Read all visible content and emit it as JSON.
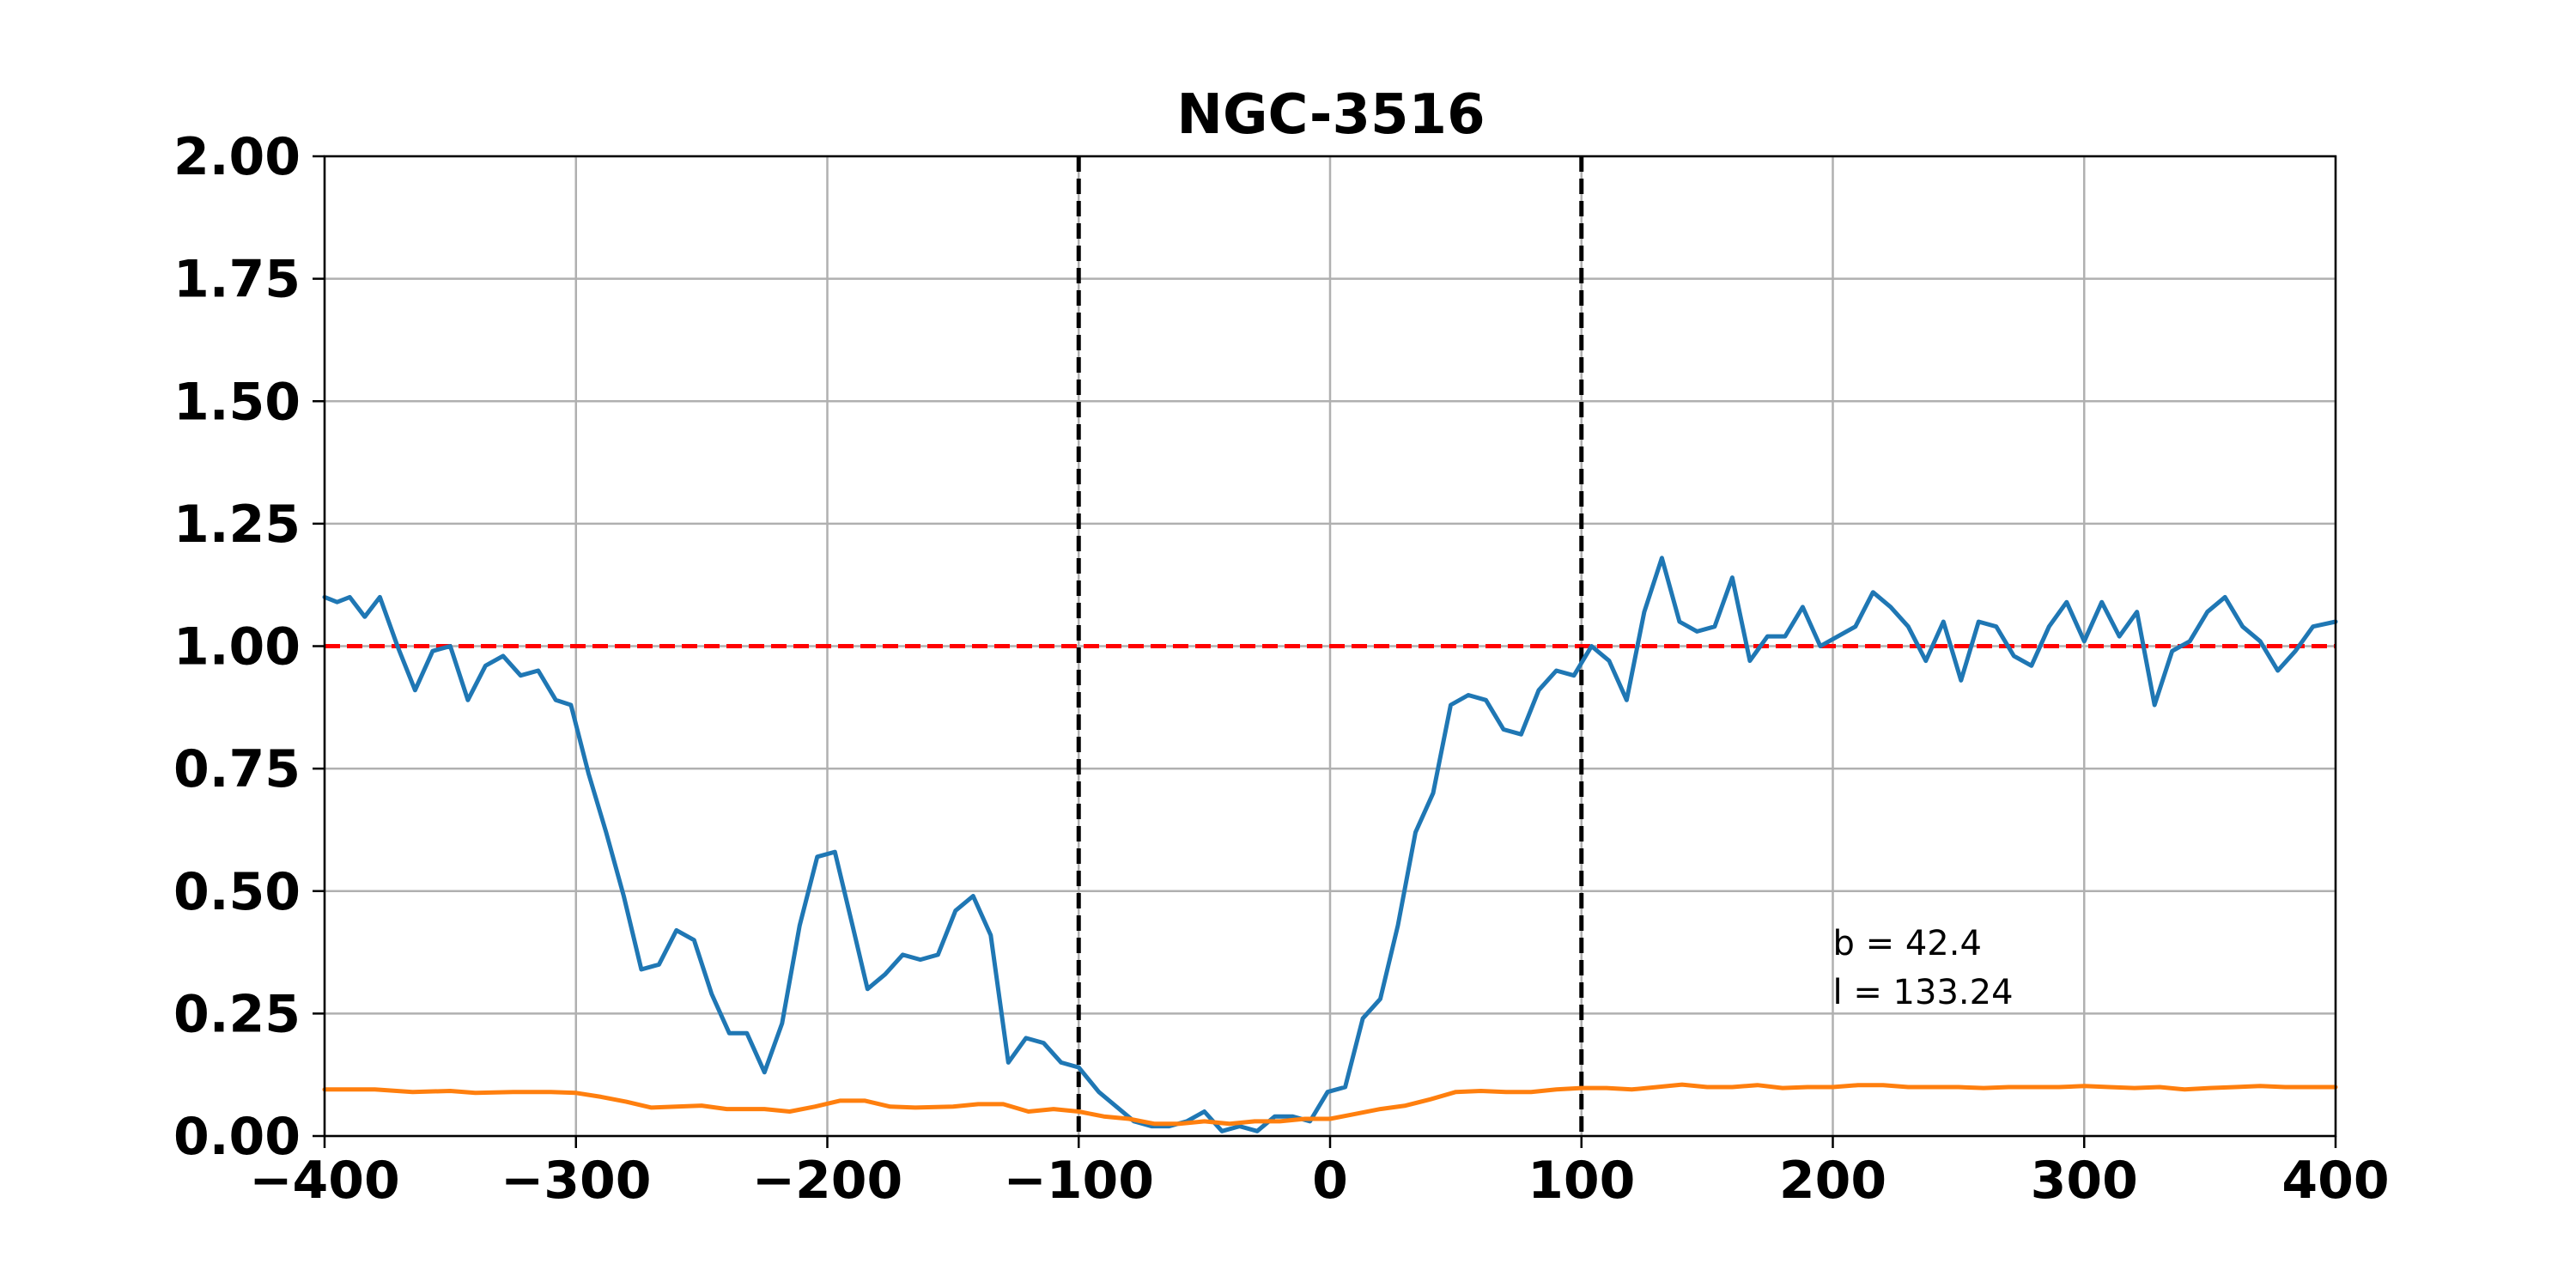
{
  "chart_data": {
    "type": "line",
    "title": "NGC-3516",
    "xlabel": "",
    "ylabel": "",
    "xlim": [
      -400,
      400
    ],
    "ylim": [
      0,
      2
    ],
    "xticks": [
      -400,
      -300,
      -200,
      -100,
      0,
      100,
      200,
      300,
      400
    ],
    "xtick_labels": [
      "−400",
      "−300",
      "−200",
      "−100",
      "0",
      "100",
      "200",
      "300",
      "400"
    ],
    "yticks": [
      0,
      0.25,
      0.5,
      0.75,
      1.0,
      1.25,
      1.5,
      1.75,
      2.0
    ],
    "ytick_labels": [
      "0.00",
      "0.25",
      "0.50",
      "0.75",
      "1.00",
      "1.25",
      "1.50",
      "1.75",
      "2.00"
    ],
    "grid": true,
    "reference_lines": [
      {
        "orientation": "horizontal",
        "value": 1.0,
        "color": "#ff0000",
        "style": "dashed"
      },
      {
        "orientation": "vertical",
        "value": -100,
        "color": "#000000",
        "style": "dashed"
      },
      {
        "orientation": "vertical",
        "value": 100,
        "color": "#000000",
        "style": "dashed"
      }
    ],
    "annotations": [
      {
        "text": "b = 42.4",
        "x": 200,
        "y": 0.37
      },
      {
        "text": "l = 133.24",
        "x": 200,
        "y": 0.27
      }
    ],
    "series": [
      {
        "color": "#1f77b4",
        "points": [
          [
            -400,
            1.1
          ],
          [
            -395,
            1.09
          ],
          [
            -390,
            1.1
          ],
          [
            -384,
            1.06
          ],
          [
            -378,
            1.1
          ],
          [
            -371,
            1.0
          ],
          [
            -364,
            0.91
          ],
          [
            -357,
            0.99
          ],
          [
            -350,
            1.0
          ],
          [
            -343,
            0.89
          ],
          [
            -336,
            0.96
          ],
          [
            -329,
            0.98
          ],
          [
            -322,
            0.94
          ],
          [
            -315,
            0.95
          ],
          [
            -308,
            0.89
          ],
          [
            -302,
            0.88
          ],
          [
            -295,
            0.74
          ],
          [
            -288,
            0.62
          ],
          [
            -281,
            0.49
          ],
          [
            -274,
            0.34
          ],
          [
            -267,
            0.35
          ],
          [
            -260,
            0.42
          ],
          [
            -253,
            0.4
          ],
          [
            -246,
            0.29
          ],
          [
            -239,
            0.21
          ],
          [
            -232,
            0.21
          ],
          [
            -225,
            0.13
          ],
          [
            -218,
            0.23
          ],
          [
            -211,
            0.43
          ],
          [
            -204,
            0.57
          ],
          [
            -197,
            0.58
          ],
          [
            -190,
            0.43
          ],
          [
            -184,
            0.3
          ],
          [
            -177,
            0.33
          ],
          [
            -170,
            0.37
          ],
          [
            -163,
            0.36
          ],
          [
            -156,
            0.37
          ],
          [
            -149,
            0.46
          ],
          [
            -142,
            0.49
          ],
          [
            -135,
            0.41
          ],
          [
            -128,
            0.15
          ],
          [
            -121,
            0.2
          ],
          [
            -114,
            0.19
          ],
          [
            -107,
            0.15
          ],
          [
            -100,
            0.14
          ],
          [
            -92,
            0.09
          ],
          [
            -85,
            0.06
          ],
          [
            -78,
            0.03
          ],
          [
            -71,
            0.02
          ],
          [
            -64,
            0.02
          ],
          [
            -57,
            0.03
          ],
          [
            -50,
            0.05
          ],
          [
            -43,
            0.01
          ],
          [
            -36,
            0.02
          ],
          [
            -29,
            0.01
          ],
          [
            -22,
            0.04
          ],
          [
            -15,
            0.04
          ],
          [
            -8,
            0.03
          ],
          [
            -1,
            0.09
          ],
          [
            6,
            0.1
          ],
          [
            13,
            0.24
          ],
          [
            20,
            0.28
          ],
          [
            27,
            0.43
          ],
          [
            34,
            0.62
          ],
          [
            41,
            0.7
          ],
          [
            48,
            0.88
          ],
          [
            55,
            0.9
          ],
          [
            62,
            0.89
          ],
          [
            69,
            0.83
          ],
          [
            76,
            0.82
          ],
          [
            83,
            0.91
          ],
          [
            90,
            0.95
          ],
          [
            97,
            0.94
          ],
          [
            104,
            1.0
          ],
          [
            111,
            0.97
          ],
          [
            118,
            0.89
          ],
          [
            125,
            1.07
          ],
          [
            132,
            1.18
          ],
          [
            139,
            1.05
          ],
          [
            146,
            1.03
          ],
          [
            153,
            1.04
          ],
          [
            160,
            1.14
          ],
          [
            167,
            0.97
          ],
          [
            174,
            1.02
          ],
          [
            181,
            1.02
          ],
          [
            188,
            1.08
          ],
          [
            195,
            1.0
          ],
          [
            202,
            1.02
          ],
          [
            209,
            1.04
          ],
          [
            216,
            1.11
          ],
          [
            223,
            1.08
          ],
          [
            230,
            1.04
          ],
          [
            237,
            0.97
          ],
          [
            244,
            1.05
          ],
          [
            251,
            0.93
          ],
          [
            258,
            1.05
          ],
          [
            265,
            1.04
          ],
          [
            272,
            0.98
          ],
          [
            279,
            0.96
          ],
          [
            286,
            1.04
          ],
          [
            293,
            1.09
          ],
          [
            300,
            1.01
          ],
          [
            307,
            1.09
          ],
          [
            314,
            1.02
          ],
          [
            321,
            1.07
          ],
          [
            328,
            0.88
          ],
          [
            335,
            0.99
          ],
          [
            342,
            1.01
          ],
          [
            349,
            1.07
          ],
          [
            356,
            1.1
          ],
          [
            363,
            1.04
          ],
          [
            370,
            1.01
          ],
          [
            377,
            0.95
          ],
          [
            384,
            0.99
          ],
          [
            391,
            1.04
          ],
          [
            400,
            1.05
          ]
        ]
      },
      {
        "color": "#ff7f0e",
        "points": [
          [
            -400,
            0.095
          ],
          [
            -380,
            0.095
          ],
          [
            -365,
            0.09
          ],
          [
            -350,
            0.092
          ],
          [
            -340,
            0.088
          ],
          [
            -325,
            0.09
          ],
          [
            -310,
            0.09
          ],
          [
            -300,
            0.088
          ],
          [
            -290,
            0.08
          ],
          [
            -280,
            0.07
          ],
          [
            -270,
            0.058
          ],
          [
            -260,
            0.06
          ],
          [
            -250,
            0.062
          ],
          [
            -240,
            0.055
          ],
          [
            -225,
            0.055
          ],
          [
            -215,
            0.05
          ],
          [
            -205,
            0.06
          ],
          [
            -195,
            0.072
          ],
          [
            -185,
            0.072
          ],
          [
            -175,
            0.06
          ],
          [
            -165,
            0.058
          ],
          [
            -150,
            0.06
          ],
          [
            -140,
            0.065
          ],
          [
            -130,
            0.065
          ],
          [
            -120,
            0.05
          ],
          [
            -110,
            0.055
          ],
          [
            -100,
            0.05
          ],
          [
            -90,
            0.04
          ],
          [
            -80,
            0.035
          ],
          [
            -70,
            0.025
          ],
          [
            -60,
            0.025
          ],
          [
            -50,
            0.03
          ],
          [
            -40,
            0.025
          ],
          [
            -30,
            0.03
          ],
          [
            -20,
            0.03
          ],
          [
            -10,
            0.035
          ],
          [
            0,
            0.035
          ],
          [
            10,
            0.045
          ],
          [
            20,
            0.055
          ],
          [
            30,
            0.062
          ],
          [
            40,
            0.075
          ],
          [
            50,
            0.09
          ],
          [
            60,
            0.092
          ],
          [
            70,
            0.09
          ],
          [
            80,
            0.09
          ],
          [
            90,
            0.095
          ],
          [
            100,
            0.098
          ],
          [
            110,
            0.098
          ],
          [
            120,
            0.095
          ],
          [
            130,
            0.1
          ],
          [
            140,
            0.105
          ],
          [
            150,
            0.1
          ],
          [
            160,
            0.1
          ],
          [
            170,
            0.104
          ],
          [
            180,
            0.098
          ],
          [
            190,
            0.1
          ],
          [
            200,
            0.1
          ],
          [
            210,
            0.104
          ],
          [
            220,
            0.104
          ],
          [
            230,
            0.1
          ],
          [
            240,
            0.1
          ],
          [
            250,
            0.1
          ],
          [
            260,
            0.098
          ],
          [
            270,
            0.1
          ],
          [
            280,
            0.1
          ],
          [
            290,
            0.1
          ],
          [
            300,
            0.102
          ],
          [
            310,
            0.1
          ],
          [
            320,
            0.098
          ],
          [
            330,
            0.1
          ],
          [
            340,
            0.095
          ],
          [
            350,
            0.098
          ],
          [
            360,
            0.1
          ],
          [
            370,
            0.102
          ],
          [
            380,
            0.1
          ],
          [
            390,
            0.1
          ],
          [
            400,
            0.1
          ]
        ]
      }
    ]
  }
}
